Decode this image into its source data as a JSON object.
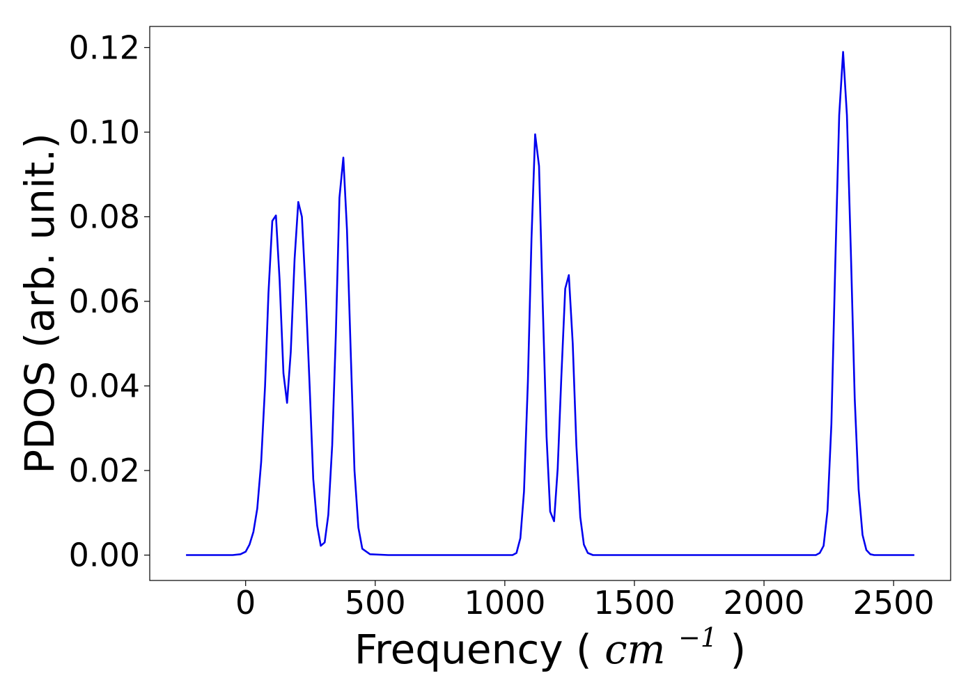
{
  "chart_data": {
    "type": "line",
    "title": "",
    "xlabel": "Frequency",
    "xlabel_unit_base": "cm",
    "xlabel_unit_exponent": "−1",
    "ylabel": "PDOS (arb. unit.)",
    "xlim": [
      -370,
      2720
    ],
    "ylim": [
      -0.006,
      0.125
    ],
    "xticks": [
      0,
      500,
      1000,
      1500,
      2000,
      2500
    ],
    "xtick_labels": [
      "0",
      "500",
      "1000",
      "1500",
      "2000",
      "2500"
    ],
    "yticks": [
      0.0,
      0.02,
      0.04,
      0.06,
      0.08,
      0.1,
      0.12
    ],
    "ytick_labels": [
      "0.00",
      "0.02",
      "0.04",
      "0.06",
      "0.08",
      "0.10",
      "0.12"
    ],
    "grid": false,
    "legend": "none",
    "series_color": "#0000ee",
    "series": [
      {
        "x": [
          -230,
          -200,
          -150,
          -100,
          -50,
          -20,
          0,
          15,
          30,
          45,
          60,
          75,
          88,
          103,
          117,
          131,
          146,
          160,
          174,
          189,
          203,
          217,
          232,
          247,
          261,
          276,
          290,
          305,
          319,
          334,
          348,
          362,
          377,
          391,
          406,
          420,
          435,
          450,
          480,
          550,
          700,
          900,
          1000,
          1030,
          1045,
          1060,
          1074,
          1089,
          1103,
          1117,
          1132,
          1146,
          1161,
          1175,
          1190,
          1204,
          1218,
          1233,
          1247,
          1262,
          1276,
          1291,
          1305,
          1320,
          1340,
          1400,
          1600,
          1800,
          2000,
          2150,
          2200,
          2215,
          2230,
          2245,
          2260,
          2275,
          2290,
          2305,
          2320,
          2335,
          2350,
          2365,
          2380,
          2395,
          2410,
          2425,
          2440,
          2480,
          2540,
          2580
        ],
        "y": [
          0,
          0,
          0,
          0,
          0,
          0.0002,
          0.0008,
          0.0025,
          0.0055,
          0.011,
          0.022,
          0.04,
          0.062,
          0.079,
          0.0803,
          0.065,
          0.043,
          0.036,
          0.048,
          0.07,
          0.0835,
          0.08,
          0.062,
          0.04,
          0.018,
          0.007,
          0.0022,
          0.003,
          0.0095,
          0.026,
          0.052,
          0.0845,
          0.094,
          0.077,
          0.047,
          0.02,
          0.0065,
          0.0015,
          0.0002,
          0,
          0,
          0,
          0,
          0,
          0.0005,
          0.004,
          0.015,
          0.041,
          0.075,
          0.0995,
          0.092,
          0.06,
          0.028,
          0.0103,
          0.008,
          0.0205,
          0.042,
          0.063,
          0.0662,
          0.05,
          0.026,
          0.009,
          0.0025,
          0.0005,
          0,
          0,
          0,
          0,
          0,
          0,
          0,
          0.0005,
          0.0022,
          0.0105,
          0.031,
          0.069,
          0.104,
          0.119,
          0.104,
          0.072,
          0.037,
          0.0155,
          0.0048,
          0.0012,
          0.0002,
          0,
          0,
          0,
          0,
          0
        ]
      }
    ]
  }
}
